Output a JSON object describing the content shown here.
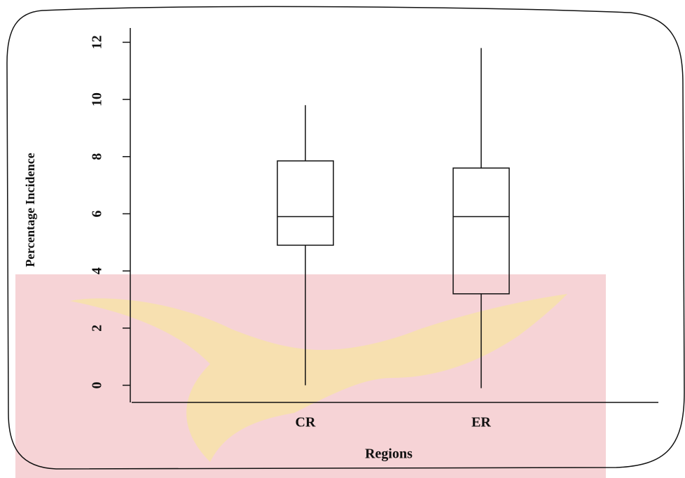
{
  "chart_data": {
    "type": "box",
    "x_label": "Regions",
    "y_label": "Percentage Incidence",
    "categories": [
      "CR",
      "ER"
    ],
    "boxes": [
      {
        "min": 0,
        "q1": 4.9,
        "median": 5.9,
        "q3": 7.85,
        "max": 9.8
      },
      {
        "min": -0.1,
        "q1": 3.2,
        "median": 5.9,
        "q3": 7.6,
        "max": 11.8
      }
    ],
    "ylim": [
      -0.6,
      12.5
    ],
    "yticks": [
      0,
      2,
      4,
      6,
      8,
      10,
      12
    ]
  }
}
